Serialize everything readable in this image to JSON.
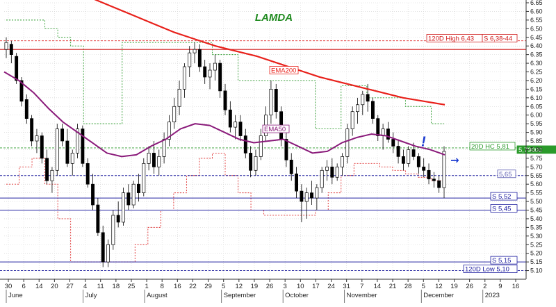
{
  "chart_data": {
    "type": "candlestick",
    "title": "LAMDA",
    "ylim": [
      5.05,
      6.65
    ],
    "yticks": [
      "6.65",
      "6.60",
      "6.55",
      "6.50",
      "6.45",
      "6.40",
      "6.35",
      "6.30",
      "6.25",
      "6.20",
      "6.15",
      "6.10",
      "6.05",
      "6.00",
      "5.95",
      "5.90",
      "5.85",
      "5.80",
      "5.75",
      "5.70",
      "5.65",
      "5.60",
      "5.55",
      "5.50",
      "5.45",
      "5.40",
      "5.35",
      "5.30",
      "5.25",
      "5.20",
      "5.15",
      "5.10"
    ],
    "xticks": [
      "30",
      "6",
      "14",
      "20",
      "27",
      "4",
      "11",
      "18",
      "25",
      "1",
      "8",
      "16",
      "22",
      "29",
      "5",
      "12",
      "19",
      "26",
      "3",
      "10",
      "17",
      "24",
      "31",
      "7",
      "14",
      "21",
      "28",
      "5",
      "12",
      "19",
      "26",
      "2",
      "9",
      "16"
    ],
    "months": [
      "June",
      "July",
      "August",
      "September",
      "October",
      "November",
      "December",
      "2023"
    ],
    "last_price": "5,79000",
    "levels": [
      {
        "label": "120D High 6,43",
        "value": 6.43
      },
      {
        "label": "S 6,38-44",
        "value": 6.38
      },
      {
        "label": "20D HC 5,81",
        "value": 5.81
      },
      {
        "label": "5,65",
        "value": 5.65
      },
      {
        "label": "S 5,52",
        "value": 5.52
      },
      {
        "label": "S 5,45",
        "value": 5.45
      },
      {
        "label": "S 5,15",
        "value": 5.15
      },
      {
        "label": "120D Low 5,10",
        "value": 5.1
      }
    ],
    "indicators": [
      {
        "label": "EMA200",
        "color": "#e8201a"
      },
      {
        "label": "EMA50",
        "color": "#8a1a7a"
      }
    ],
    "annotations": [
      "!",
      "→"
    ],
    "candles": [
      [
        6.38,
        6.45,
        6.33,
        6.42
      ],
      [
        6.41,
        6.43,
        6.3,
        6.35
      ],
      [
        6.34,
        6.36,
        6.18,
        6.2
      ],
      [
        6.2,
        6.22,
        6.05,
        6.08
      ],
      [
        6.09,
        6.12,
        5.95,
        5.98
      ],
      [
        5.98,
        6.0,
        5.82,
        5.85
      ],
      [
        5.85,
        5.92,
        5.78,
        5.88
      ],
      [
        5.88,
        5.9,
        5.72,
        5.75
      ],
      [
        5.75,
        5.8,
        5.6,
        5.62
      ],
      [
        5.62,
        5.7,
        5.55,
        5.68
      ],
      [
        5.68,
        5.95,
        5.65,
        5.92
      ],
      [
        5.92,
        5.95,
        5.82,
        5.85
      ],
      [
        5.85,
        5.92,
        5.7,
        5.72
      ],
      [
        5.72,
        5.8,
        5.65,
        5.78
      ],
      [
        5.78,
        5.95,
        5.75,
        5.92
      ],
      [
        5.92,
        5.94,
        5.7,
        5.72
      ],
      [
        5.72,
        5.75,
        5.58,
        5.6
      ],
      [
        5.6,
        5.66,
        5.45,
        5.48
      ],
      [
        5.48,
        5.52,
        5.3,
        5.32
      ],
      [
        5.32,
        5.36,
        5.12,
        5.15
      ],
      [
        5.15,
        5.28,
        5.12,
        5.25
      ],
      [
        5.25,
        5.45,
        5.22,
        5.42
      ],
      [
        5.42,
        5.5,
        5.35,
        5.38
      ],
      [
        5.38,
        5.58,
        5.36,
        5.55
      ],
      [
        5.55,
        5.6,
        5.45,
        5.48
      ],
      [
        5.48,
        5.62,
        5.46,
        5.6
      ],
      [
        5.6,
        5.66,
        5.5,
        5.55
      ],
      [
        5.55,
        5.75,
        5.53,
        5.72
      ],
      [
        5.72,
        5.82,
        5.68,
        5.78
      ],
      [
        5.78,
        5.85,
        5.66,
        5.7
      ],
      [
        5.7,
        5.8,
        5.65,
        5.76
      ],
      [
        5.76,
        5.9,
        5.72,
        5.86
      ],
      [
        5.86,
        6.0,
        5.82,
        5.96
      ],
      [
        5.96,
        6.1,
        5.92,
        6.05
      ],
      [
        6.05,
        6.2,
        6.0,
        6.15
      ],
      [
        6.15,
        6.3,
        6.1,
        6.28
      ],
      [
        6.28,
        6.4,
        6.22,
        6.36
      ],
      [
        6.36,
        6.42,
        6.3,
        6.38
      ],
      [
        6.38,
        6.41,
        6.25,
        6.28
      ],
      [
        6.28,
        6.32,
        6.18,
        6.22
      ],
      [
        6.22,
        6.3,
        6.15,
        6.26
      ],
      [
        6.26,
        6.35,
        6.2,
        6.3
      ],
      [
        6.3,
        6.32,
        6.1,
        6.14
      ],
      [
        6.14,
        6.18,
        6.0,
        6.03
      ],
      [
        6.03,
        6.08,
        5.9,
        5.93
      ],
      [
        5.93,
        6.0,
        5.86,
        5.96
      ],
      [
        5.96,
        6.0,
        5.85,
        5.88
      ],
      [
        5.88,
        5.92,
        5.75,
        5.78
      ],
      [
        5.78,
        5.82,
        5.64,
        5.68
      ],
      [
        5.68,
        5.8,
        5.65,
        5.76
      ],
      [
        5.76,
        5.92,
        5.74,
        5.88
      ],
      [
        5.88,
        6.05,
        5.85,
        6.0
      ],
      [
        6.0,
        6.2,
        5.95,
        6.15
      ],
      [
        6.15,
        6.18,
        5.98,
        6.02
      ],
      [
        6.02,
        6.05,
        5.82,
        5.86
      ],
      [
        5.86,
        5.9,
        5.7,
        5.74
      ],
      [
        5.74,
        5.78,
        5.62,
        5.66
      ],
      [
        5.66,
        5.7,
        5.52,
        5.56
      ],
      [
        5.56,
        5.6,
        5.38,
        5.5
      ],
      [
        5.5,
        5.58,
        5.4,
        5.55
      ],
      [
        5.55,
        5.62,
        5.48,
        5.52
      ],
      [
        5.52,
        5.6,
        5.45,
        5.58
      ],
      [
        5.58,
        5.7,
        5.55,
        5.68
      ],
      [
        5.68,
        5.74,
        5.62,
        5.7
      ],
      [
        5.7,
        5.75,
        5.6,
        5.64
      ],
      [
        5.64,
        5.72,
        5.62,
        5.7
      ],
      [
        5.7,
        5.78,
        5.65,
        5.76
      ],
      [
        5.76,
        5.95,
        5.72,
        5.92
      ],
      [
        5.92,
        6.05,
        5.88,
        6.02
      ],
      [
        6.02,
        6.1,
        5.95,
        6.06
      ],
      [
        6.06,
        6.14,
        6.0,
        6.12
      ],
      [
        6.12,
        6.18,
        6.02,
        6.08
      ],
      [
        6.08,
        6.1,
        5.95,
        5.98
      ],
      [
        5.98,
        6.0,
        5.85,
        5.88
      ],
      [
        5.88,
        5.95,
        5.8,
        5.92
      ],
      [
        5.92,
        5.96,
        5.84,
        5.86
      ],
      [
        5.86,
        5.9,
        5.78,
        5.82
      ],
      [
        5.82,
        5.86,
        5.72,
        5.76
      ],
      [
        5.76,
        5.8,
        5.68,
        5.72
      ],
      [
        5.72,
        5.82,
        5.7,
        5.8
      ],
      [
        5.8,
        5.84,
        5.74,
        5.76
      ],
      [
        5.76,
        5.78,
        5.66,
        5.7
      ],
      [
        5.7,
        5.75,
        5.64,
        5.68
      ],
      [
        5.68,
        5.72,
        5.6,
        5.63
      ],
      [
        5.63,
        5.67,
        5.58,
        5.62
      ],
      [
        5.62,
        5.65,
        5.55,
        5.58
      ],
      [
        5.58,
        5.82,
        5.52,
        5.79
      ]
    ],
    "ema200": [
      6.7,
      6.68,
      6.63,
      6.58,
      6.53,
      6.48,
      6.44,
      6.4,
      6.37,
      6.34,
      6.3,
      6.26,
      6.22,
      6.19,
      6.16,
      6.13,
      6.1,
      6.08,
      6.06
    ],
    "ema50": [
      6.25,
      6.2,
      6.13,
      6.04,
      5.96,
      5.9,
      5.84,
      5.78,
      5.76,
      5.77,
      5.82,
      5.86,
      5.92,
      5.95,
      5.94,
      5.9,
      5.86,
      5.84,
      5.85,
      5.86,
      5.82,
      5.78,
      5.79,
      5.84,
      5.87,
      5.89,
      5.88,
      5.85,
      5.82,
      5.8,
      5.77
    ],
    "upper_band": [
      6.55,
      6.55,
      6.55,
      6.5,
      6.45,
      6.4,
      5.95,
      5.95,
      5.95,
      6.42,
      6.42,
      6.42,
      6.42,
      6.42,
      6.42,
      6.42,
      6.35,
      6.35,
      6.2,
      6.2,
      6.2,
      6.2,
      6.2,
      6.2,
      5.92,
      5.92,
      6.17,
      6.17,
      6.1,
      6.1,
      6.1,
      6.05,
      6.05,
      5.95,
      5.95
    ],
    "lower_band": [
      5.6,
      5.7,
      5.75,
      5.6,
      5.4,
      5.15,
      5.15,
      5.15,
      5.15,
      5.15,
      5.25,
      5.35,
      5.45,
      5.55,
      5.65,
      5.75,
      5.78,
      5.65,
      5.55,
      5.45,
      5.42,
      5.42,
      5.42,
      5.42,
      5.45,
      5.55,
      5.65,
      5.72,
      5.72,
      5.7,
      5.68,
      5.66,
      5.64,
      5.62,
      5.62
    ]
  }
}
